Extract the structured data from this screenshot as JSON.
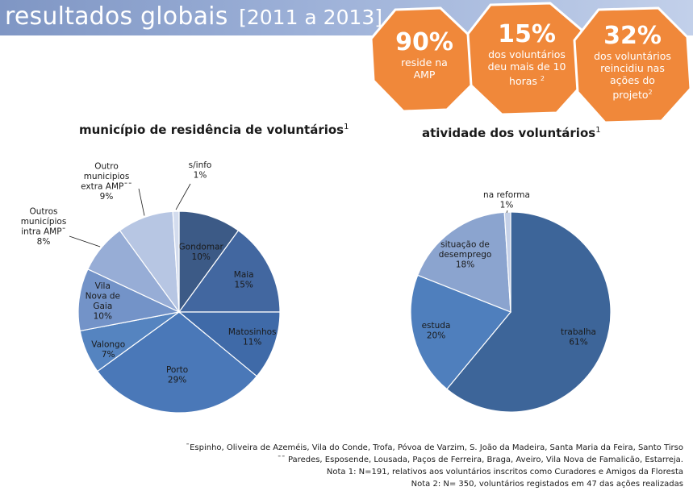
{
  "header": {
    "title": "resultados globais",
    "years": "[2011 a 2013]"
  },
  "badges": [
    {
      "value": "90%",
      "desc_lines": [
        "reside na",
        "AMP"
      ],
      "sup": ""
    },
    {
      "value": "15%",
      "desc_lines": [
        "dos voluntários",
        "deu mais de 10",
        "horas"
      ],
      "sup": "2"
    },
    {
      "value": "32%",
      "desc_lines": [
        "dos voluntários",
        "reincidiu nas",
        "ações do",
        "projeto"
      ],
      "sup": "2"
    }
  ],
  "colors": {
    "badge_orange": "#f0883a",
    "header_blue": "#8fa5cf"
  },
  "chart_data": [
    {
      "type": "pie",
      "title": "município de residência de voluntários",
      "title_sup": "1",
      "slices": [
        {
          "label_lines": [
            "Gondomar"
          ],
          "value": 10,
          "pct": "10%",
          "color": "#3c5a86"
        },
        {
          "label_lines": [
            "Maia"
          ],
          "value": 15,
          "pct": "15%",
          "color": "#4267a0"
        },
        {
          "label_lines": [
            "Matosinhos"
          ],
          "value": 11,
          "pct": "11%",
          "color": "#3f6aa8"
        },
        {
          "label_lines": [
            "Porto"
          ],
          "value": 29,
          "pct": "29%",
          "color": "#4a78b8"
        },
        {
          "label_lines": [
            "Valongo"
          ],
          "value": 7,
          "pct": "7%",
          "color": "#5584c0"
        },
        {
          "label_lines": [
            "Vila",
            "Nova de",
            "Gaia"
          ],
          "value": 10,
          "pct": "10%",
          "color": "#7393c8"
        },
        {
          "label_lines": [
            "Outros",
            "municípios",
            "intra AMP"
          ],
          "label_marker": "¯",
          "value": 8,
          "pct": "8%",
          "color": "#97add6"
        },
        {
          "label_lines": [
            "Outro",
            "municipios",
            "extra AMP"
          ],
          "label_marker": "¯¯",
          "value": 9,
          "pct": "9%",
          "color": "#b7c6e3"
        },
        {
          "label_lines": [
            "s/info"
          ],
          "value": 1,
          "pct": "1%",
          "color": "#d3dcee"
        }
      ]
    },
    {
      "type": "pie",
      "title": "atividade dos voluntários",
      "title_sup": "1",
      "slices": [
        {
          "label_lines": [
            "trabalha"
          ],
          "value": 61,
          "pct": "61%",
          "color": "#3d6599"
        },
        {
          "label_lines": [
            "estuda"
          ],
          "value": 20,
          "pct": "20%",
          "color": "#4f7fbd"
        },
        {
          "label_lines": [
            "situação de",
            "desemprego"
          ],
          "value": 18,
          "pct": "18%",
          "color": "#8ba4cf"
        },
        {
          "label_lines": [
            "na reforma"
          ],
          "value": 1,
          "pct": "1%",
          "color": "#c5d1e8"
        }
      ]
    }
  ],
  "footnotes": {
    "intra_marker": "¯",
    "intra": "Espinho, Oliveira de Azeméis, Vila do Conde, Trofa, Póvoa de Varzim, S. João da Madeira, Santa Maria da Feira, Santo Tirso",
    "extra_marker": "¯¯",
    "extra": "Paredes, Esposende, Lousada, Paços de Ferreira, Braga, Aveiro, Vila Nova de Famalicão, Estarreja.",
    "nota1": "Nota 1: N=191, relativos aos voluntários inscritos como Curadores e Amigos da Floresta",
    "nota2": "Nota 2: N= 350, voluntários registados em 47 das ações realizadas"
  }
}
